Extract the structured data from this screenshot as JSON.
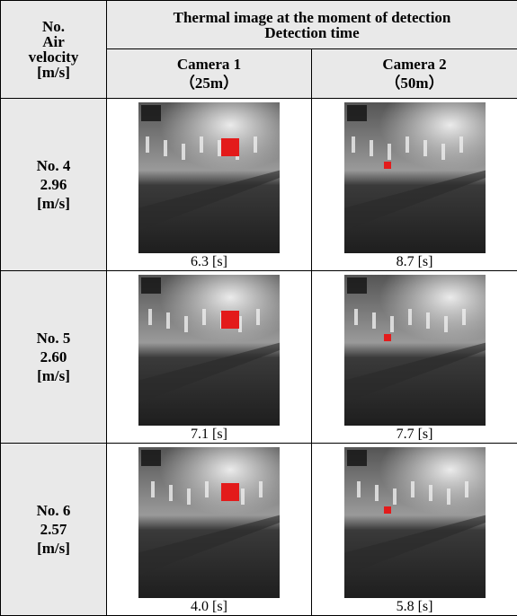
{
  "table": {
    "header": {
      "col0_line1": "No.",
      "col0_line2": "Air velocity [m/s]",
      "span_line1": "Thermal image at the moment of detection",
      "span_line2": "Detection time",
      "cameras": [
        {
          "name": "Camera 1",
          "distance": "（25m）"
        },
        {
          "name": "Camera 2",
          "distance": "（50m）"
        }
      ]
    },
    "rows": [
      {
        "no": "No. 4",
        "velocity": "2.96",
        "unit": "[m/s]",
        "times": [
          "6.3 [s]",
          "8.7 [s]"
        ]
      },
      {
        "no": "No. 5",
        "velocity": "2.60",
        "unit": "[m/s]",
        "times": [
          "7.1 [s]",
          "7.7 [s]"
        ]
      },
      {
        "no": "No. 6",
        "velocity": "2.57",
        "unit": "[m/s]",
        "times": [
          "4.0 [s]",
          "5.8 [s]"
        ]
      }
    ]
  }
}
